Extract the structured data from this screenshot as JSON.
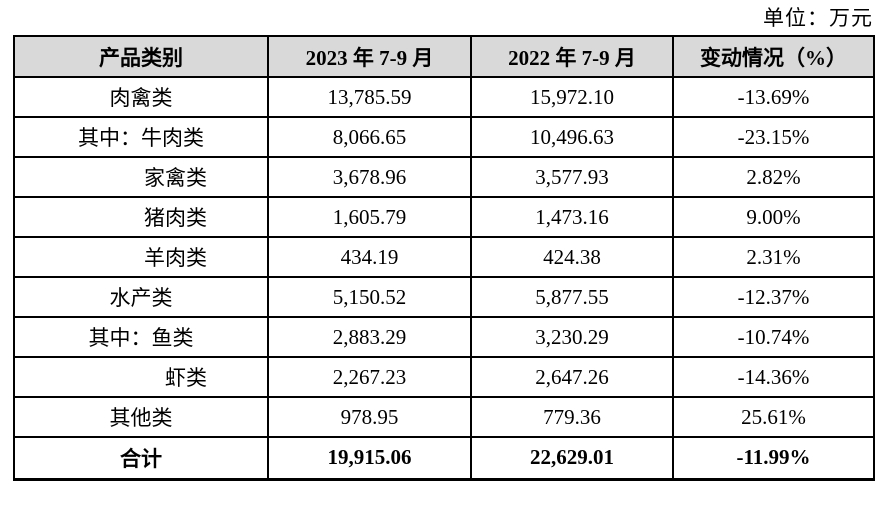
{
  "unit_label": "单位：万元",
  "colors": {
    "header_bg": "#d9d9d9",
    "border": "#000000",
    "text": "#000000",
    "page_bg": "#ffffff"
  },
  "table": {
    "columns": {
      "category": "产品类别",
      "period_2023": "2023 年 7-9 月",
      "period_2022": "2022 年 7-9 月",
      "change": "变动情况（%）"
    },
    "rows": [
      {
        "category": "肉禽类",
        "v2023": "13,785.59",
        "v2022": "15,972.10",
        "change": "-13.69%",
        "indent": "top",
        "is_total": false
      },
      {
        "category": "其中：牛肉类",
        "v2023": "8,066.65",
        "v2022": "10,496.63",
        "change": "-23.15%",
        "indent": "among",
        "is_total": false
      },
      {
        "category": "家禽类",
        "v2023": "3,678.96",
        "v2022": "3,577.93",
        "change": "2.82%",
        "indent": "sub",
        "is_total": false
      },
      {
        "category": "猪肉类",
        "v2023": "1,605.79",
        "v2022": "1,473.16",
        "change": "9.00%",
        "indent": "sub",
        "is_total": false
      },
      {
        "category": "羊肉类",
        "v2023": "434.19",
        "v2022": "424.38",
        "change": "2.31%",
        "indent": "sub",
        "is_total": false
      },
      {
        "category": "水产类",
        "v2023": "5,150.52",
        "v2022": "5,877.55",
        "change": "-12.37%",
        "indent": "top",
        "is_total": false
      },
      {
        "category": "其中：鱼类",
        "v2023": "2,883.29",
        "v2022": "3,230.29",
        "change": "-10.74%",
        "indent": "among",
        "is_total": false
      },
      {
        "category": "虾类",
        "v2023": "2,267.23",
        "v2022": "2,647.26",
        "change": "-14.36%",
        "indent": "sub",
        "is_total": false
      },
      {
        "category": "其他类",
        "v2023": "978.95",
        "v2022": "779.36",
        "change": "25.61%",
        "indent": "top",
        "is_total": false
      },
      {
        "category": "合计",
        "v2023": "19,915.06",
        "v2022": "22,629.01",
        "change": "-11.99%",
        "indent": "top",
        "is_total": true
      }
    ]
  }
}
